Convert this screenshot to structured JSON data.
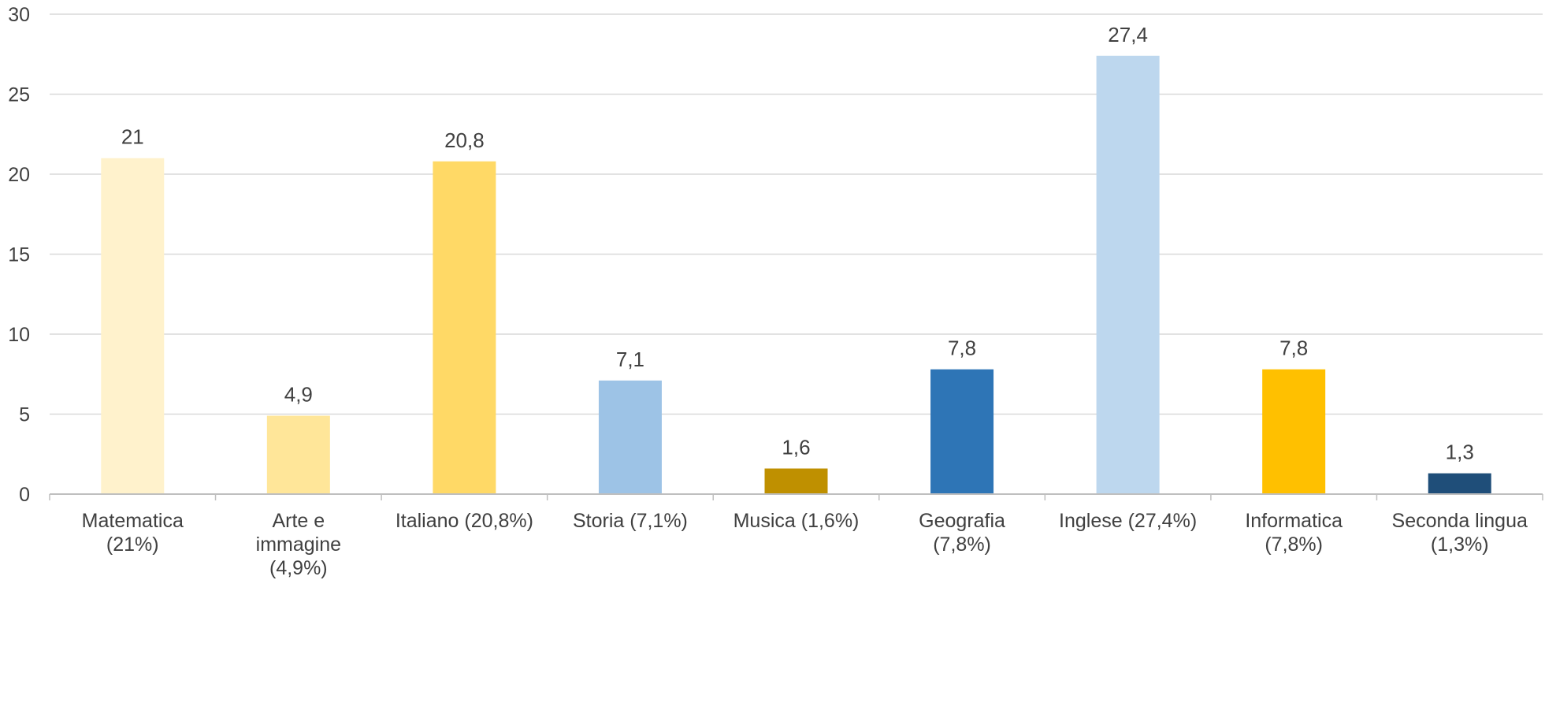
{
  "chart_data": {
    "type": "bar",
    "categories": [
      [
        "Matematica",
        "(21%)"
      ],
      [
        "Arte e",
        "immagine",
        "(4,9%)"
      ],
      [
        "Italiano (20,8%)"
      ],
      [
        "Storia (7,1%)"
      ],
      [
        "Musica (1,6%)"
      ],
      [
        "Geografia",
        "(7,8%)"
      ],
      [
        "Inglese (27,4%)"
      ],
      [
        "Informatica",
        "(7,8%)"
      ],
      [
        "Seconda lingua",
        "(1,3%)"
      ]
    ],
    "values": [
      21,
      4.9,
      20.8,
      7.1,
      1.6,
      7.8,
      27.4,
      7.8,
      1.3
    ],
    "data_labels": [
      "21",
      "4,9",
      "20,8",
      "7,1",
      "1,6",
      "7,8",
      "27,4",
      "7,8",
      "1,3"
    ],
    "colors": [
      "#FFF2CC",
      "#FFE699",
      "#FFD966",
      "#9DC3E6",
      "#BF9000",
      "#2E75B6",
      "#BDD7EE",
      "#FFC000",
      "#1F4E79"
    ],
    "ylim": [
      0,
      30
    ],
    "yticks": [
      "0",
      "5",
      "10",
      "15",
      "20",
      "25",
      "30"
    ],
    "ytick_values": [
      0,
      5,
      10,
      15,
      20,
      25,
      30
    ],
    "grid": true,
    "legend": "none"
  }
}
